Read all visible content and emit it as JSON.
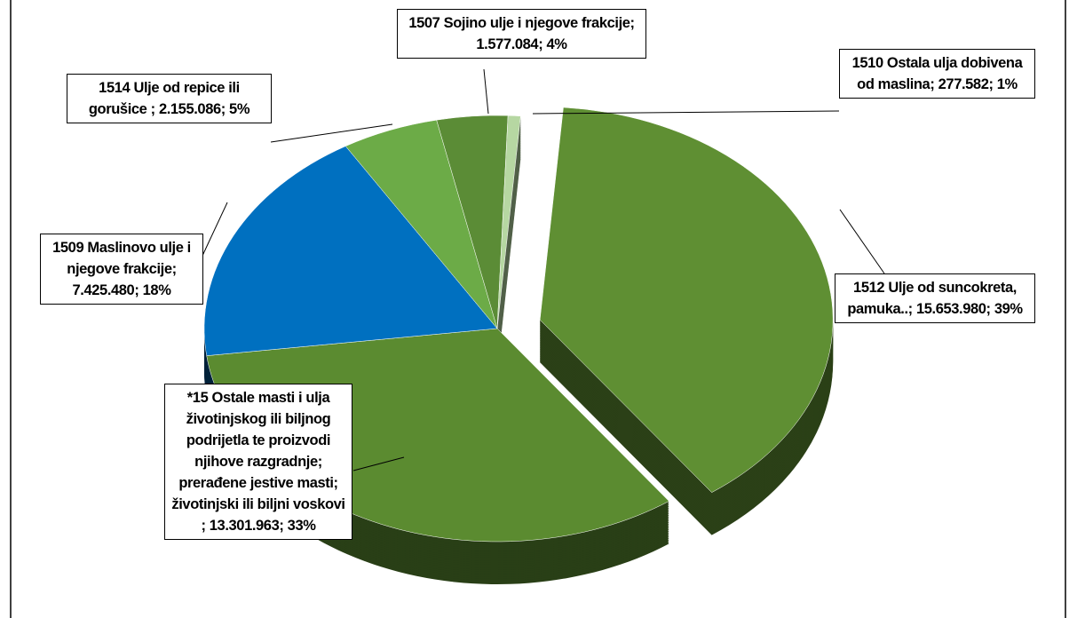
{
  "chart_data": {
    "type": "pie3d",
    "categories": [
      "1512 Ulje od suncokreta, pamuka..",
      "*15 Ostale masti i ulja životinjskog ili biljnog podrijetla te proizvodi njihove razgradnje; prerađene jestive masti; životinjski ili biljni voskovi  ",
      "1509 Maslinovo ulje i njegove frakcije",
      "1514 Ulje od repice ili gorušice ",
      "1507 Sojino ulje i njegove frakcije",
      "1510 Ostala ulja dobivena od maslina"
    ],
    "values": [
      15653980,
      13301963,
      7425480,
      2155086,
      1577084,
      277582
    ],
    "value_labels": [
      "15.653.980",
      "13.301.963",
      "7.425.480",
      "2.155.086",
      "1.577.084",
      "277.582"
    ],
    "percent_labels": [
      "39%",
      "33%",
      "18%",
      "5%",
      "4%",
      "1%"
    ],
    "label_separator": ";",
    "colors": [
      "#5f8f33",
      "#5b8b30",
      "#0070c0",
      "#6cab47",
      "#5b8c36",
      "#b6d7a2"
    ],
    "exploded": [
      true,
      false,
      false,
      false,
      false,
      false
    ]
  }
}
